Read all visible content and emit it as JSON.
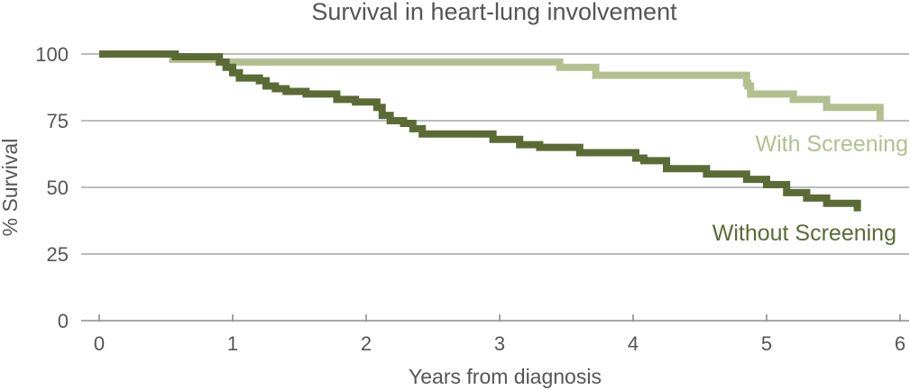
{
  "chart_data": {
    "type": "line",
    "step": true,
    "title": "Survival in heart-lung involvement",
    "xlabel": "Years from diagnosis",
    "ylabel": "% Survival",
    "xlim": [
      0,
      6
    ],
    "ylim": [
      0,
      100
    ],
    "xticks": [
      0,
      1,
      2,
      3,
      4,
      5,
      6
    ],
    "yticks": [
      0,
      25,
      50,
      75,
      100
    ],
    "grid": "horizontal",
    "series": [
      {
        "name": "With Screening",
        "color": "#b3bf8f",
        "x": [
          0,
          0.55,
          0.9,
          3.02,
          3.45,
          3.72,
          4.85,
          4.86,
          4.88,
          5.2,
          5.45,
          5.85
        ],
        "y": [
          100,
          98,
          97,
          97,
          95,
          92,
          89,
          88,
          85,
          83,
          80,
          75
        ]
      },
      {
        "name": "Without Screening",
        "color": "#5a6b35",
        "x": [
          0,
          0.57,
          0.9,
          0.95,
          1.0,
          1.05,
          1.12,
          1.2,
          1.25,
          1.32,
          1.4,
          1.45,
          1.55,
          1.72,
          1.78,
          1.92,
          2.08,
          2.12,
          2.18,
          2.28,
          2.35,
          2.42,
          2.6,
          2.95,
          3.15,
          3.3,
          3.6,
          3.82,
          4.02,
          4.08,
          4.25,
          4.55,
          4.85,
          5.0,
          5.15,
          5.3,
          5.45,
          5.68
        ],
        "y": [
          100,
          99,
          97,
          95,
          93,
          91,
          91,
          90,
          88,
          87,
          86,
          86,
          85,
          85,
          83,
          82,
          80,
          77,
          75,
          74,
          72,
          70,
          70,
          68,
          66,
          65,
          63,
          63,
          61,
          60,
          57,
          55,
          53,
          51,
          48,
          46,
          44,
          41
        ]
      }
    ]
  }
}
